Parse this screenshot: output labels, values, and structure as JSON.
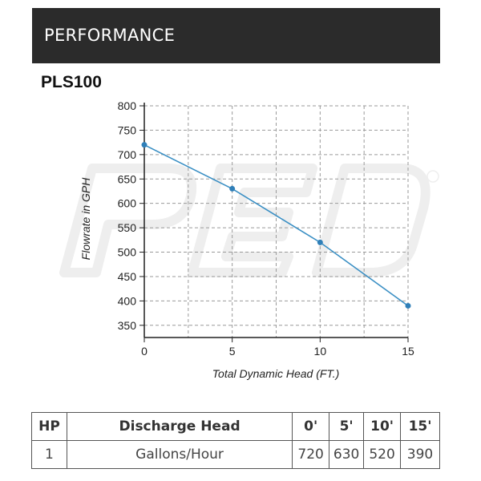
{
  "header": {
    "title": "PERFORMANCE"
  },
  "model": "PLS100",
  "chart_data": {
    "type": "line",
    "title": "PLS100",
    "xlabel": "Total Dynamic Head (FT.)",
    "ylabel": "Flowrate in GPH",
    "x": [
      0,
      5,
      10,
      15
    ],
    "series": [
      {
        "values": [
          720,
          630,
          520,
          390
        ]
      }
    ],
    "xlim": [
      0,
      15
    ],
    "ylim": [
      325,
      800
    ],
    "xticks": [
      "0",
      "5",
      "10",
      "15"
    ],
    "yticks": [
      "350",
      "400",
      "450",
      "500",
      "550",
      "600",
      "650",
      "700",
      "750",
      "800"
    ],
    "grid": true,
    "grid_style": "dashed",
    "line_color": "#3a8fc4",
    "marker_color": "#2f7fb8"
  },
  "table": {
    "headers": [
      "HP",
      "Discharge Head",
      "0'",
      "5'",
      "10'",
      "15'"
    ],
    "rows": [
      [
        "1",
        "Gallons/Hour",
        "720",
        "630",
        "520",
        "390"
      ]
    ]
  }
}
